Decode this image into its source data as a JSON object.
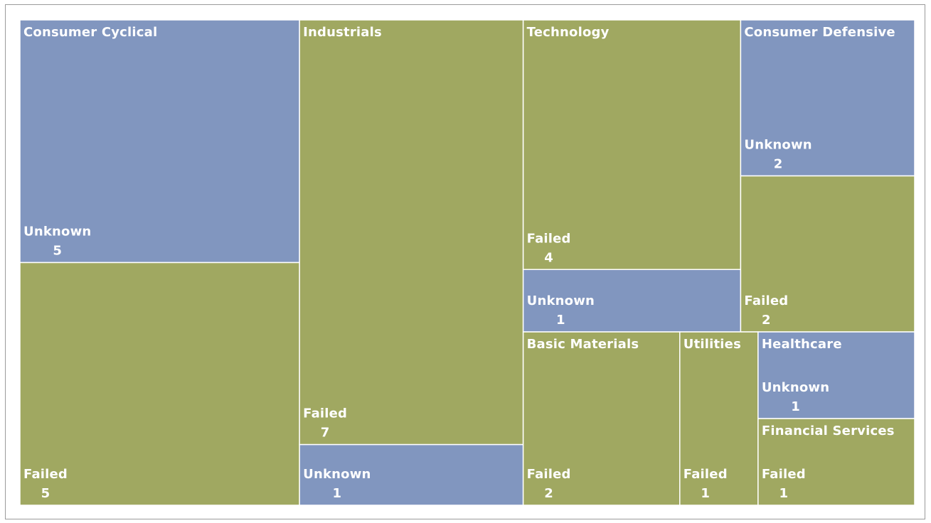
{
  "chart_data": {
    "type": "treemap",
    "groups": [
      {
        "name": "Consumer Cyclical",
        "children": [
          {
            "name": "Unknown",
            "value": 5,
            "color": "#8196bf"
          },
          {
            "name": "Failed",
            "value": 5,
            "color": "#a0a861"
          }
        ]
      },
      {
        "name": "Industrials",
        "children": [
          {
            "name": "Failed",
            "value": 7,
            "color": "#a0a861"
          },
          {
            "name": "Unknown",
            "value": 1,
            "color": "#8196bf"
          }
        ]
      },
      {
        "name": "Technology",
        "children": [
          {
            "name": "Failed",
            "value": 4,
            "color": "#a0a861"
          },
          {
            "name": "Unknown",
            "value": 1,
            "color": "#8196bf"
          }
        ]
      },
      {
        "name": "Consumer Defensive",
        "children": [
          {
            "name": "Unknown",
            "value": 2,
            "color": "#8196bf"
          },
          {
            "name": "Failed",
            "value": 2,
            "color": "#a0a861"
          }
        ]
      },
      {
        "name": "Basic Materials",
        "children": [
          {
            "name": "Failed",
            "value": 2,
            "color": "#a0a861"
          }
        ]
      },
      {
        "name": "Utilities",
        "children": [
          {
            "name": "Failed",
            "value": 1,
            "color": "#a0a861"
          }
        ]
      },
      {
        "name": "Healthcare",
        "children": [
          {
            "name": "Unknown",
            "value": 1,
            "color": "#8196bf"
          }
        ]
      },
      {
        "name": "Financial Services",
        "children": [
          {
            "name": "Failed",
            "value": 1,
            "color": "#a0a861"
          }
        ]
      }
    ]
  }
}
